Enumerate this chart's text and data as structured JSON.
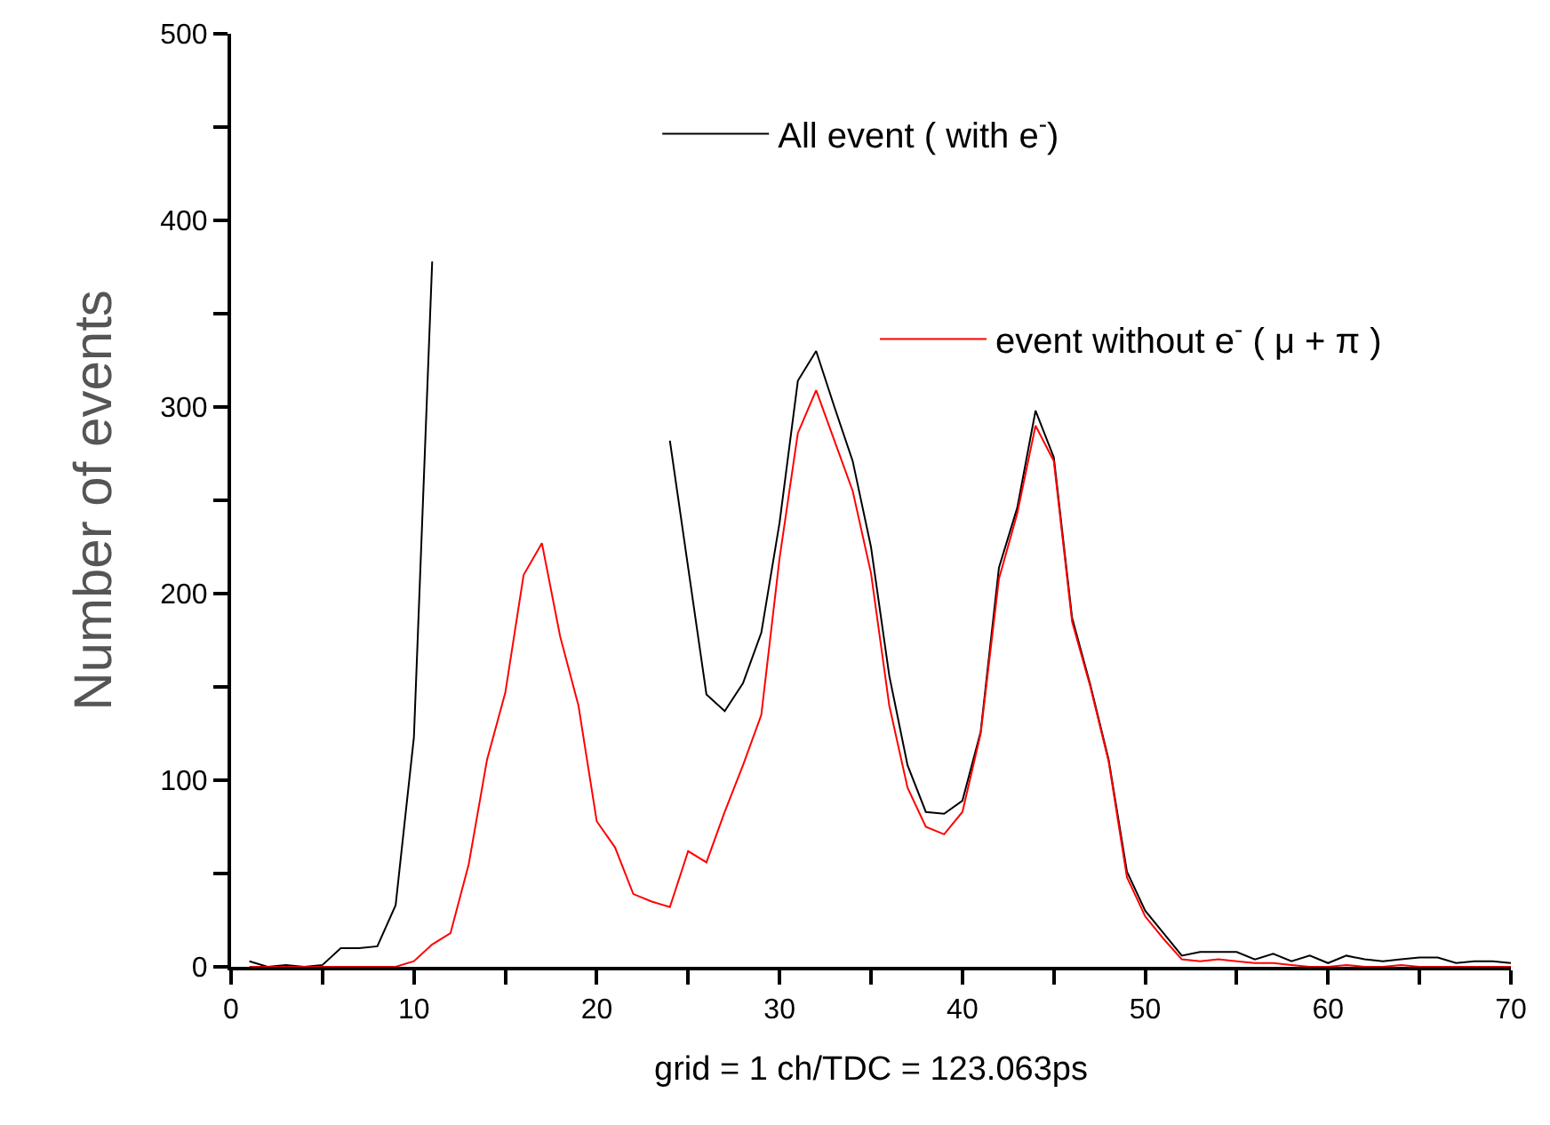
{
  "chart_data": {
    "type": "line",
    "xlabel": "grid = 1 ch/TDC = 123.063ps",
    "ylabel": "Number of events",
    "x": [
      1,
      2,
      3,
      4,
      5,
      6,
      7,
      8,
      9,
      10,
      11,
      12,
      13,
      14,
      15,
      16,
      17,
      18,
      19,
      20,
      21,
      22,
      23,
      24,
      25,
      26,
      27,
      28,
      29,
      30,
      31,
      32,
      33,
      34,
      35,
      36,
      37,
      38,
      39,
      40,
      41,
      42,
      43,
      44,
      45,
      46,
      47,
      48,
      49,
      50,
      51,
      52,
      53,
      54,
      55,
      56,
      57,
      58,
      59,
      60,
      61,
      62,
      63,
      64,
      65,
      66,
      67,
      68,
      69,
      70
    ],
    "series": [
      {
        "name": "All event ( with e$^{-}$)",
        "color": "#000000",
        "values": [
          3,
          0,
          1,
          0,
          1,
          10,
          10,
          11,
          33,
          123,
          378,
          null,
          null,
          null,
          null,
          null,
          null,
          null,
          null,
          null,
          null,
          null,
          null,
          282,
          214,
          146,
          137,
          152,
          179,
          238,
          314,
          330,
          300,
          271,
          225,
          156,
          108,
          83,
          82,
          89,
          126,
          214,
          246,
          298,
          273,
          187,
          151,
          111,
          51,
          30,
          18,
          6,
          8,
          8,
          8,
          4,
          7,
          3,
          6,
          2,
          6,
          4,
          3,
          4,
          5,
          5,
          2,
          3,
          3,
          2
        ]
      },
      {
        "name": "event without e$^{-}$ ( μ + π )",
        "color": "#ff0000",
        "values": [
          0,
          0,
          0,
          0,
          0,
          0,
          0,
          0,
          0,
          3,
          12,
          18,
          55,
          111,
          147,
          210,
          227,
          177,
          140,
          78,
          64,
          39,
          35,
          32,
          62,
          56,
          83,
          108,
          135,
          219,
          286,
          309,
          282,
          255,
          211,
          140,
          96,
          75,
          71,
          83,
          125,
          208,
          243,
          290,
          271,
          185,
          150,
          110,
          48,
          27,
          15,
          4,
          3,
          4,
          3,
          2,
          2,
          1,
          0,
          0,
          1,
          0,
          0,
          1,
          0,
          0,
          0,
          0,
          0,
          0
        ]
      }
    ],
    "xlim": [
      0,
      70
    ],
    "ylim": [
      0,
      500
    ],
    "xticks": [
      0,
      {
        "value": 5,
        "label": null
      },
      10,
      {
        "value": 15,
        "label": null
      },
      20,
      {
        "value": 25,
        "label": null
      },
      30,
      {
        "value": 35,
        "label": null
      },
      40,
      {
        "value": 45,
        "label": null
      },
      50,
      {
        "value": 55,
        "label": null
      },
      60,
      {
        "value": 65,
        "label": null
      },
      70
    ],
    "yticks": [
      0,
      {
        "value": 50,
        "label": null
      },
      100,
      {
        "value": 150,
        "label": null
      },
      200,
      {
        "value": 250,
        "label": null
      },
      300,
      {
        "value": 350,
        "label": null
      },
      400,
      {
        "value": 450,
        "label": null
      },
      500
    ],
    "legend": "top right",
    "marker": "none",
    "line_style": "solid"
  }
}
